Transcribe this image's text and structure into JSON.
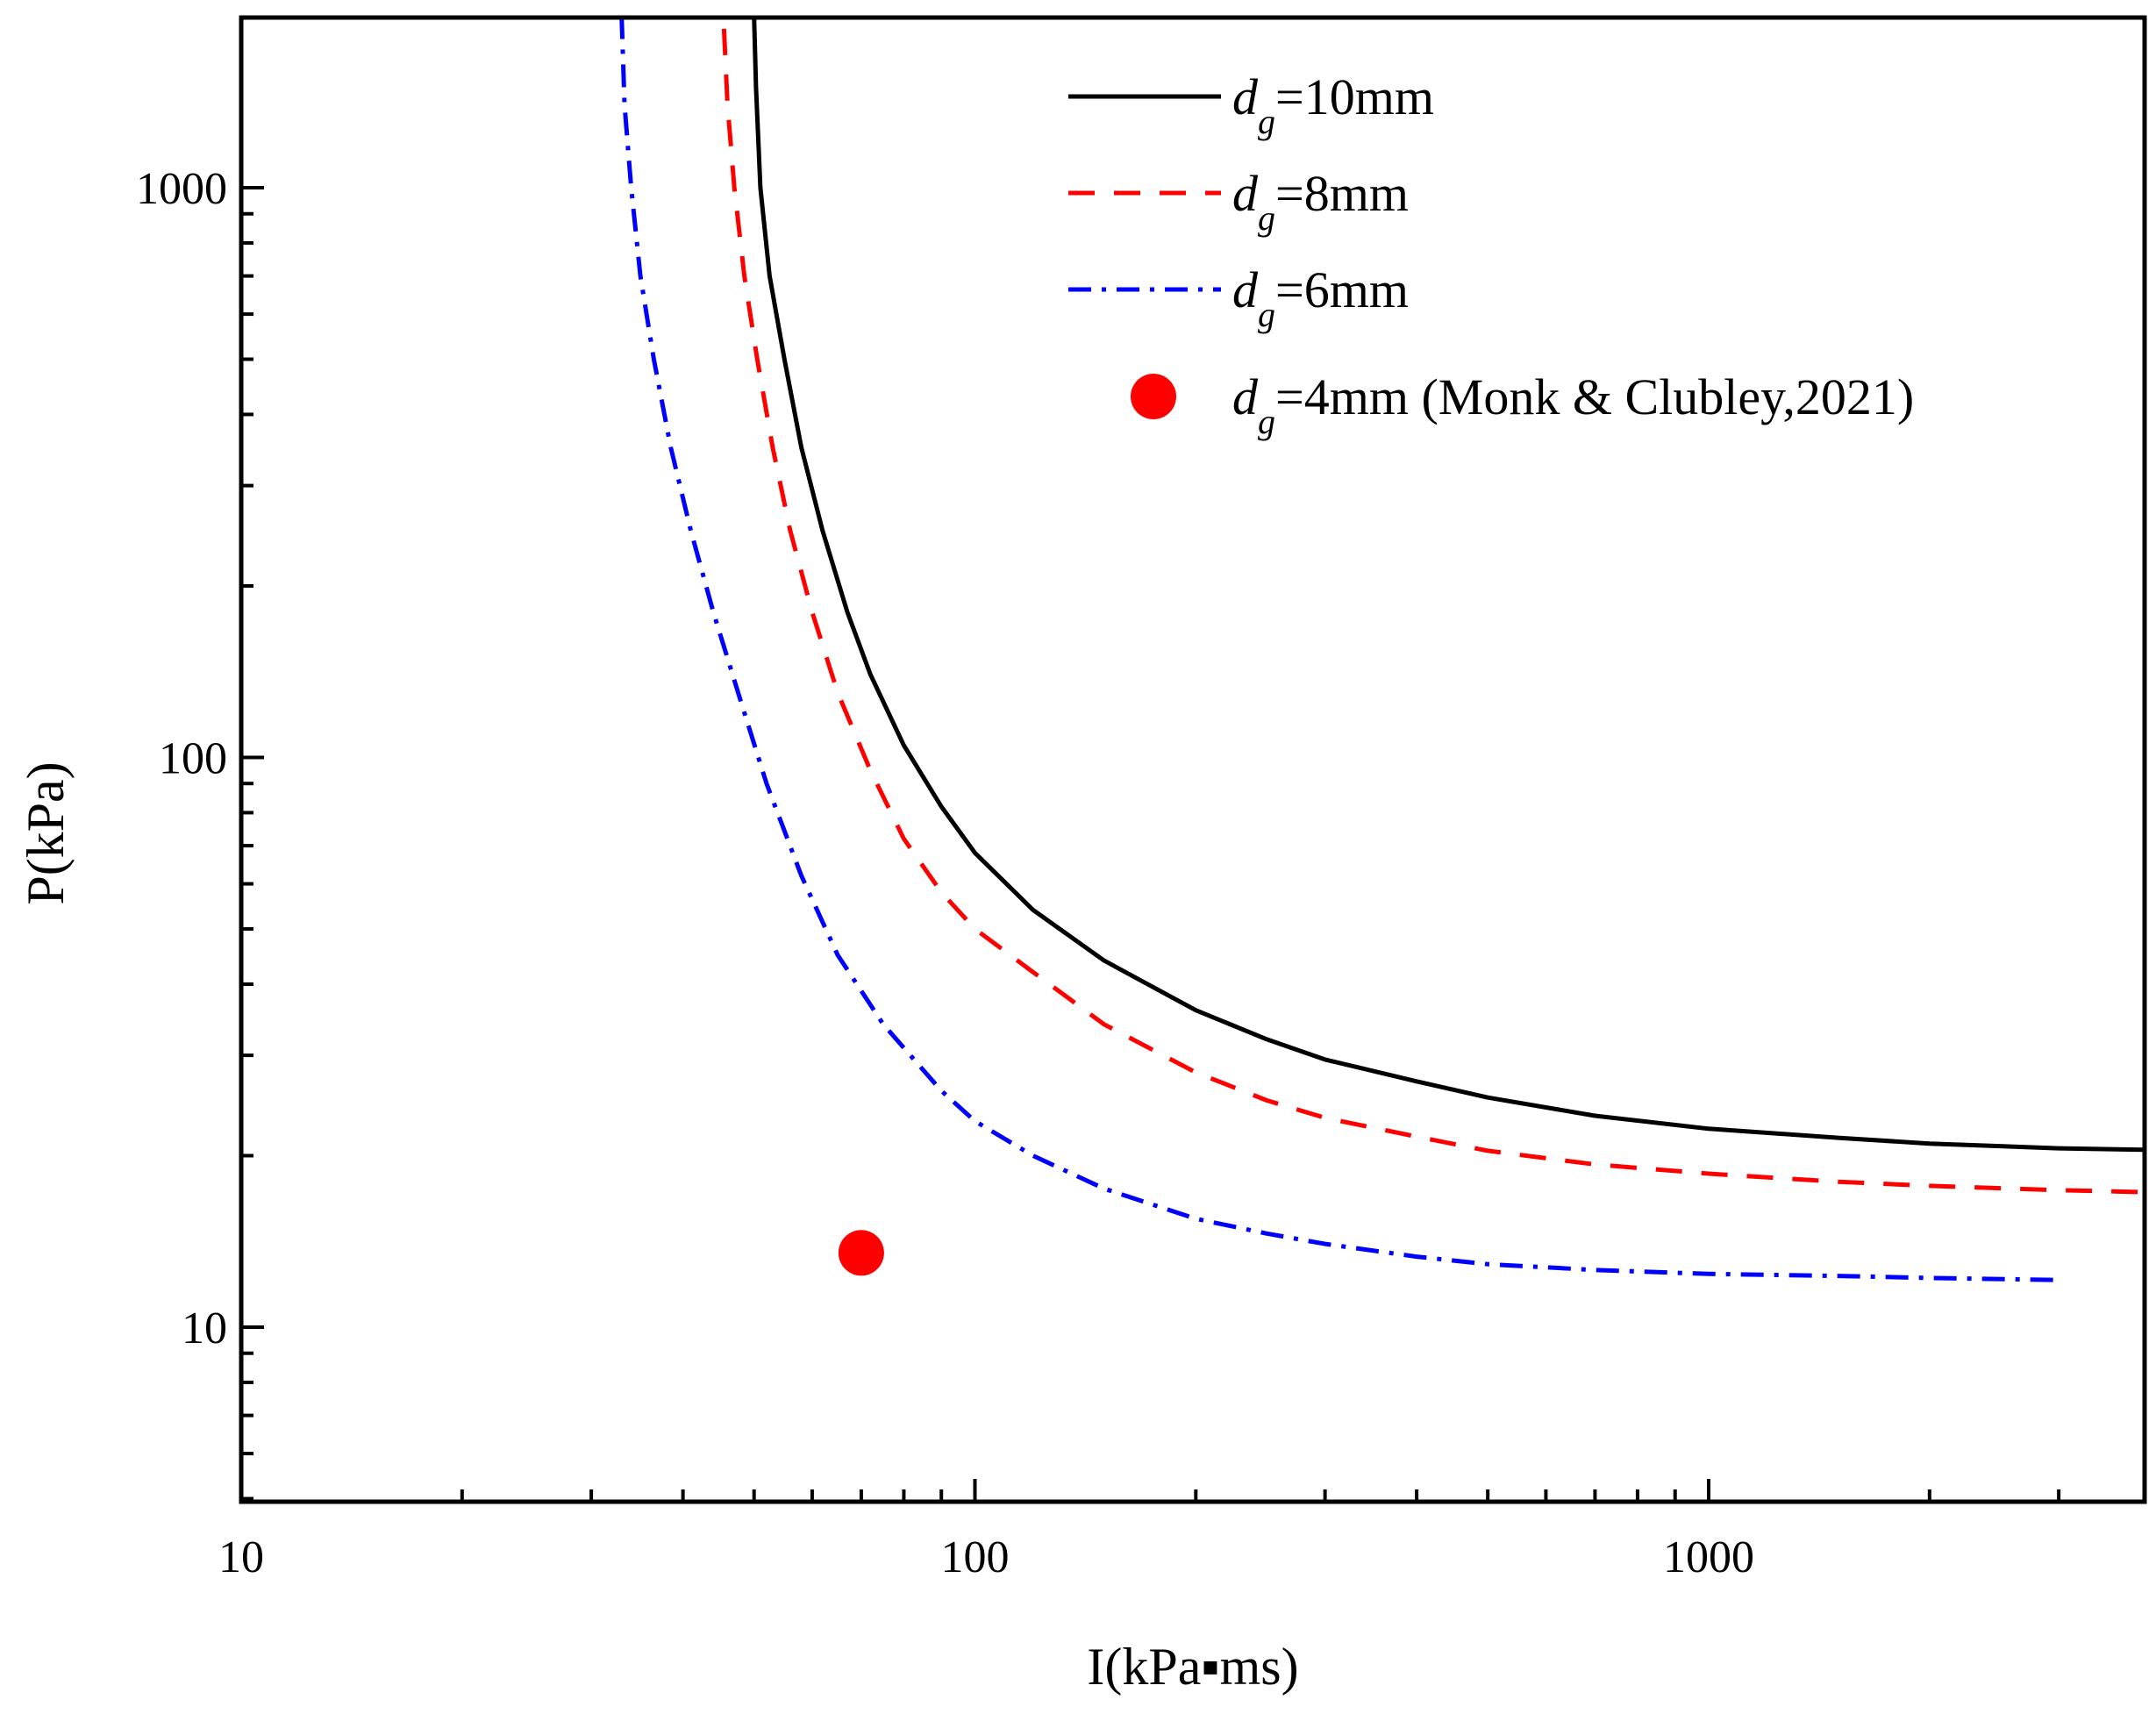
{
  "chart_data": {
    "type": "line",
    "title": "",
    "xlabel": "I(kPa▪ms)",
    "ylabel": "P(kPa)",
    "xscale": "log",
    "yscale": "log",
    "xlim": [
      10,
      4700
    ],
    "ylim": [
      5,
      2000
    ],
    "xticks": [
      {
        "value": 10,
        "label": "10"
      },
      {
        "value": 100,
        "label": "100"
      },
      {
        "value": 1000,
        "label": "1000"
      }
    ],
    "yticks": [
      {
        "value": 10,
        "label": "10"
      },
      {
        "value": 100,
        "label": "100"
      },
      {
        "value": 1000,
        "label": "1000"
      }
    ],
    "grid": false,
    "legend_position": "top-right",
    "series": [
      {
        "name": "dg=10mm",
        "legend_main": "d",
        "legend_sub": "g",
        "legend_rest": "=10mm",
        "style": "solid",
        "color": "#000000",
        "points": [
          [
            50,
            2000
          ],
          [
            50.3,
            1500
          ],
          [
            51,
            1000
          ],
          [
            52.5,
            700
          ],
          [
            55,
            500
          ],
          [
            58,
            350
          ],
          [
            62,
            250
          ],
          [
            67,
            180
          ],
          [
            72,
            140
          ],
          [
            80,
            105
          ],
          [
            90,
            82
          ],
          [
            100,
            68
          ],
          [
            120,
            54
          ],
          [
            150,
            44
          ],
          [
            200,
            36
          ],
          [
            250,
            32
          ],
          [
            300,
            29.5
          ],
          [
            400,
            27
          ],
          [
            500,
            25.3
          ],
          [
            700,
            23.5
          ],
          [
            1000,
            22.3
          ],
          [
            1500,
            21.5
          ],
          [
            2000,
            21
          ],
          [
            3000,
            20.6
          ],
          [
            4700,
            20.4
          ]
        ]
      },
      {
        "name": "dg=8mm",
        "legend_main": "d",
        "legend_sub": "g",
        "legend_rest": "=8mm",
        "style": "dashed",
        "color": "#ff0000",
        "points": [
          [
            45.5,
            1900
          ],
          [
            46,
            1400
          ],
          [
            47,
            1000
          ],
          [
            48.5,
            700
          ],
          [
            50.5,
            500
          ],
          [
            53,
            350
          ],
          [
            56,
            250
          ],
          [
            60,
            180
          ],
          [
            65,
            130
          ],
          [
            72,
            95
          ],
          [
            80,
            72
          ],
          [
            90,
            58
          ],
          [
            100,
            50
          ],
          [
            120,
            42
          ],
          [
            150,
            34
          ],
          [
            200,
            28
          ],
          [
            250,
            25
          ],
          [
            300,
            23.3
          ],
          [
            400,
            21.6
          ],
          [
            500,
            20.4
          ],
          [
            700,
            19.3
          ],
          [
            1000,
            18.6
          ],
          [
            1500,
            18
          ],
          [
            2000,
            17.7
          ],
          [
            3000,
            17.4
          ],
          [
            4400,
            17.2
          ]
        ]
      },
      {
        "name": "dg=6mm",
        "legend_main": "d",
        "legend_sub": "g",
        "legend_rest": "=6mm",
        "style": "dashdot",
        "color": "#0000ff",
        "points": [
          [
            33,
            2000
          ],
          [
            33.3,
            1400
          ],
          [
            34,
            1000
          ],
          [
            35,
            700
          ],
          [
            36.5,
            500
          ],
          [
            38.5,
            350
          ],
          [
            41,
            250
          ],
          [
            44,
            180
          ],
          [
            48,
            125
          ],
          [
            52,
            90
          ],
          [
            58,
            62
          ],
          [
            65,
            45
          ],
          [
            75,
            34
          ],
          [
            90,
            26
          ],
          [
            100,
            23
          ],
          [
            120,
            20
          ],
          [
            150,
            17.5
          ],
          [
            200,
            15.5
          ],
          [
            250,
            14.6
          ],
          [
            300,
            14
          ],
          [
            400,
            13.3
          ],
          [
            500,
            12.9
          ],
          [
            700,
            12.6
          ],
          [
            1000,
            12.4
          ],
          [
            1500,
            12.3
          ],
          [
            2000,
            12.2
          ],
          [
            3000,
            12.1
          ]
        ]
      },
      {
        "name": "dg=4mm (Monk & Clubley,2021)",
        "legend_main": "d",
        "legend_sub": "g",
        "legend_rest": "=4mm (Monk & Clubley,2021)",
        "style": "marker",
        "color": "#ff0000",
        "points": [
          [
            70,
            13.5
          ]
        ]
      }
    ]
  }
}
